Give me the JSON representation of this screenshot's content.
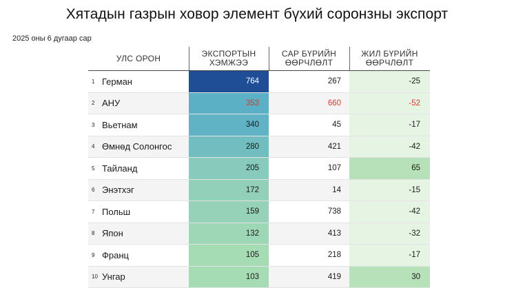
{
  "title": "Хятадын газрын ховор элемент бүхий соронзны экспорт",
  "subtitle": "2025 оны 6 дугаар сар",
  "columns": {
    "country": "УЛС ОРОН",
    "export": "ЭКСПОРТЫН ХЭМЖЭЭ",
    "mom": "САР БҮРИЙН ӨӨРЧЛӨЛТ",
    "yoy": "ЖИЛ БҮРИЙН ӨӨРЧЛӨЛТ"
  },
  "colors": {
    "export_scale": [
      "#a6dcb4",
      "#1f4e97"
    ],
    "yoy_positive": "#b7e2b9",
    "yoy_negative": "#e6f4e4",
    "highlight": "#d63a2f"
  },
  "chart_data": {
    "type": "table",
    "title": "Хятадын газрын ховор элемент бүхий соронзны экспорт",
    "subtitle": "2025 оны 6 дугаар сар",
    "rows": [
      {
        "rank": "1",
        "country": "Герман",
        "export": 764,
        "mom": "267",
        "yoy": "-25",
        "highlight": false
      },
      {
        "rank": "2",
        "country": "АНУ",
        "export": 353,
        "mom": "660",
        "yoy": "-52",
        "highlight": true
      },
      {
        "rank": "3",
        "country": "Вьетнам",
        "export": 340,
        "mom": "45",
        "yoy": "-17",
        "highlight": false
      },
      {
        "rank": "4",
        "country": "Өмнөд Солонгос",
        "export": 280,
        "mom": "421",
        "yoy": "-42",
        "highlight": false
      },
      {
        "rank": "5",
        "country": "Тайланд",
        "export": 205,
        "mom": "107",
        "yoy": "65",
        "highlight": false
      },
      {
        "rank": "6",
        "country": "Энэтхэг",
        "export": 172,
        "mom": "14",
        "yoy": "-15",
        "highlight": false
      },
      {
        "rank": "7",
        "country": "Польш",
        "export": 159,
        "mom": "738",
        "yoy": "-42",
        "highlight": false
      },
      {
        "rank": "8",
        "country": "Япон",
        "export": 132,
        "mom": "413",
        "yoy": "-32",
        "highlight": false
      },
      {
        "rank": "9",
        "country": "Франц",
        "export": 105,
        "mom": "218",
        "yoy": "-17",
        "highlight": false
      },
      {
        "rank": "10",
        "country": "Унгар",
        "export": 103,
        "mom": "419",
        "yoy": "30",
        "highlight": false
      }
    ]
  }
}
